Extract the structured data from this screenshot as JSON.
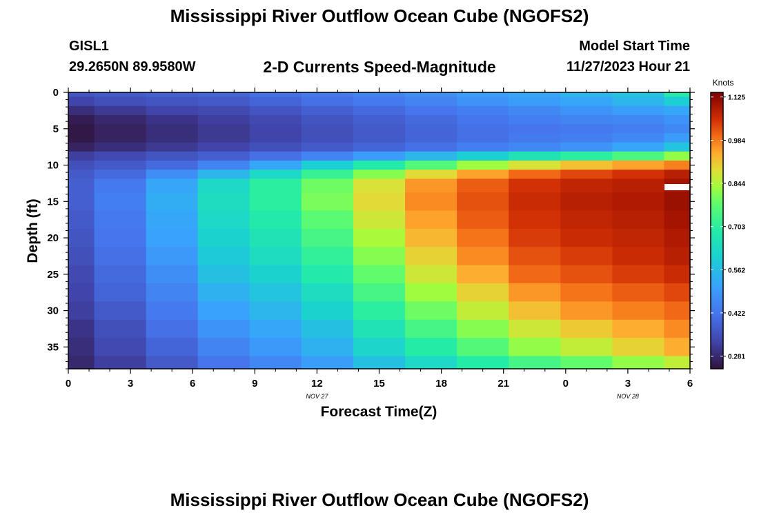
{
  "page": {
    "title": "Mississippi River Outflow Ocean Cube (NGOFS2)",
    "station_id": "GISL1",
    "station_coords": "29.2650N  89.9580W",
    "plot_subtitle": "2-D Currents Speed-Magnitude",
    "model_start_label": "Model Start Time",
    "model_start_value": "11/27/2023 Hour 21",
    "footer_title": "Mississippi River Outflow Ocean Cube (NGOFS2)"
  },
  "chart_data": {
    "type": "heatmap",
    "title": "2-D Currents Speed-Magnitude",
    "xlabel": "Forecast Time(Z)",
    "ylabel": "Depth (ft)",
    "x_ticks": [
      "0",
      "3",
      "6",
      "9",
      "12",
      "15",
      "18",
      "21",
      "0",
      "3",
      "6"
    ],
    "x_tick_hours": [
      0,
      3,
      6,
      9,
      12,
      15,
      18,
      21,
      24,
      27,
      30
    ],
    "date_labels": [
      {
        "text": "NOV 27",
        "hour": 12
      },
      {
        "text": "NOV 28",
        "hour": 27
      }
    ],
    "x_range": [
      0,
      30
    ],
    "y_range": [
      0,
      38
    ],
    "y_ticks": [
      0,
      5,
      10,
      15,
      20,
      25,
      30,
      35
    ],
    "colorbar": {
      "title": "Knots",
      "min": 0.24,
      "max": 1.14,
      "ticks": [
        "1.125",
        "0.984",
        "0.844",
        "0.703",
        "0.562",
        "0.422",
        "0.281"
      ],
      "tick_values": [
        1.125,
        0.984,
        0.844,
        0.703,
        0.562,
        0.422,
        0.281
      ]
    },
    "time_columns_hours": [
      0,
      2.5,
      5,
      7.5,
      10,
      12.5,
      15,
      17.5,
      20,
      22.5,
      25,
      27.5,
      30
    ],
    "depth_rows_ft": [
      0,
      1.25,
      2.5,
      3.75,
      5,
      6.25,
      7.5,
      8.75,
      10,
      11.25,
      12.5,
      15,
      17.5,
      20,
      22.5,
      25,
      27.5,
      30,
      32.5,
      35,
      37.5
    ],
    "speed_knots": [
      [
        0.36,
        0.37,
        0.38,
        0.39,
        0.41,
        0.43,
        0.45,
        0.47,
        0.5,
        0.52,
        0.55,
        0.58,
        0.68
      ],
      [
        0.33,
        0.35,
        0.36,
        0.37,
        0.39,
        0.41,
        0.43,
        0.45,
        0.48,
        0.5,
        0.52,
        0.55,
        0.6
      ],
      [
        0.29,
        0.31,
        0.33,
        0.34,
        0.36,
        0.38,
        0.4,
        0.42,
        0.44,
        0.46,
        0.48,
        0.5,
        0.52
      ],
      [
        0.26,
        0.28,
        0.3,
        0.32,
        0.34,
        0.36,
        0.38,
        0.4,
        0.42,
        0.44,
        0.45,
        0.46,
        0.48
      ],
      [
        0.25,
        0.27,
        0.29,
        0.31,
        0.33,
        0.35,
        0.37,
        0.39,
        0.41,
        0.42,
        0.43,
        0.44,
        0.46
      ],
      [
        0.25,
        0.27,
        0.29,
        0.31,
        0.33,
        0.35,
        0.37,
        0.39,
        0.41,
        0.43,
        0.44,
        0.46,
        0.5
      ],
      [
        0.27,
        0.29,
        0.31,
        0.33,
        0.35,
        0.37,
        0.39,
        0.41,
        0.44,
        0.46,
        0.48,
        0.52,
        0.58
      ],
      [
        0.32,
        0.34,
        0.36,
        0.38,
        0.41,
        0.45,
        0.5,
        0.55,
        0.6,
        0.66,
        0.7,
        0.75,
        0.82
      ],
      [
        0.35,
        0.37,
        0.4,
        0.45,
        0.52,
        0.6,
        0.68,
        0.76,
        0.83,
        0.88,
        0.92,
        0.95,
        0.98
      ],
      [
        0.37,
        0.4,
        0.47,
        0.55,
        0.63,
        0.72,
        0.81,
        0.89,
        0.95,
        1.0,
        1.03,
        1.05,
        1.08
      ],
      [
        0.38,
        0.43,
        0.52,
        0.63,
        0.7,
        0.79,
        0.88,
        0.96,
        1.01,
        1.05,
        1.07,
        1.08,
        1.1
      ],
      [
        0.38,
        0.44,
        0.53,
        0.64,
        0.7,
        0.8,
        0.89,
        0.97,
        1.02,
        1.06,
        1.08,
        1.09,
        1.11
      ],
      [
        0.37,
        0.43,
        0.52,
        0.63,
        0.68,
        0.77,
        0.87,
        0.95,
        1.01,
        1.05,
        1.07,
        1.08,
        1.1
      ],
      [
        0.36,
        0.42,
        0.51,
        0.61,
        0.66,
        0.74,
        0.84,
        0.93,
        0.99,
        1.04,
        1.06,
        1.07,
        1.09
      ],
      [
        0.35,
        0.41,
        0.49,
        0.59,
        0.64,
        0.71,
        0.81,
        0.9,
        0.97,
        1.02,
        1.04,
        1.06,
        1.08
      ],
      [
        0.34,
        0.4,
        0.47,
        0.57,
        0.61,
        0.68,
        0.78,
        0.87,
        0.94,
        1.0,
        1.02,
        1.04,
        1.06
      ],
      [
        0.33,
        0.39,
        0.45,
        0.54,
        0.58,
        0.64,
        0.74,
        0.83,
        0.9,
        0.96,
        0.99,
        1.01,
        1.03
      ],
      [
        0.32,
        0.37,
        0.43,
        0.51,
        0.55,
        0.61,
        0.7,
        0.79,
        0.86,
        0.92,
        0.96,
        0.98,
        1.0
      ],
      [
        0.3,
        0.35,
        0.41,
        0.48,
        0.52,
        0.57,
        0.66,
        0.74,
        0.81,
        0.87,
        0.91,
        0.94,
        0.97
      ],
      [
        0.29,
        0.34,
        0.39,
        0.45,
        0.49,
        0.54,
        0.62,
        0.69,
        0.76,
        0.82,
        0.86,
        0.9,
        0.94
      ],
      [
        0.28,
        0.32,
        0.37,
        0.42,
        0.46,
        0.5,
        0.57,
        0.63,
        0.69,
        0.74,
        0.78,
        0.82,
        0.86
      ]
    ]
  }
}
